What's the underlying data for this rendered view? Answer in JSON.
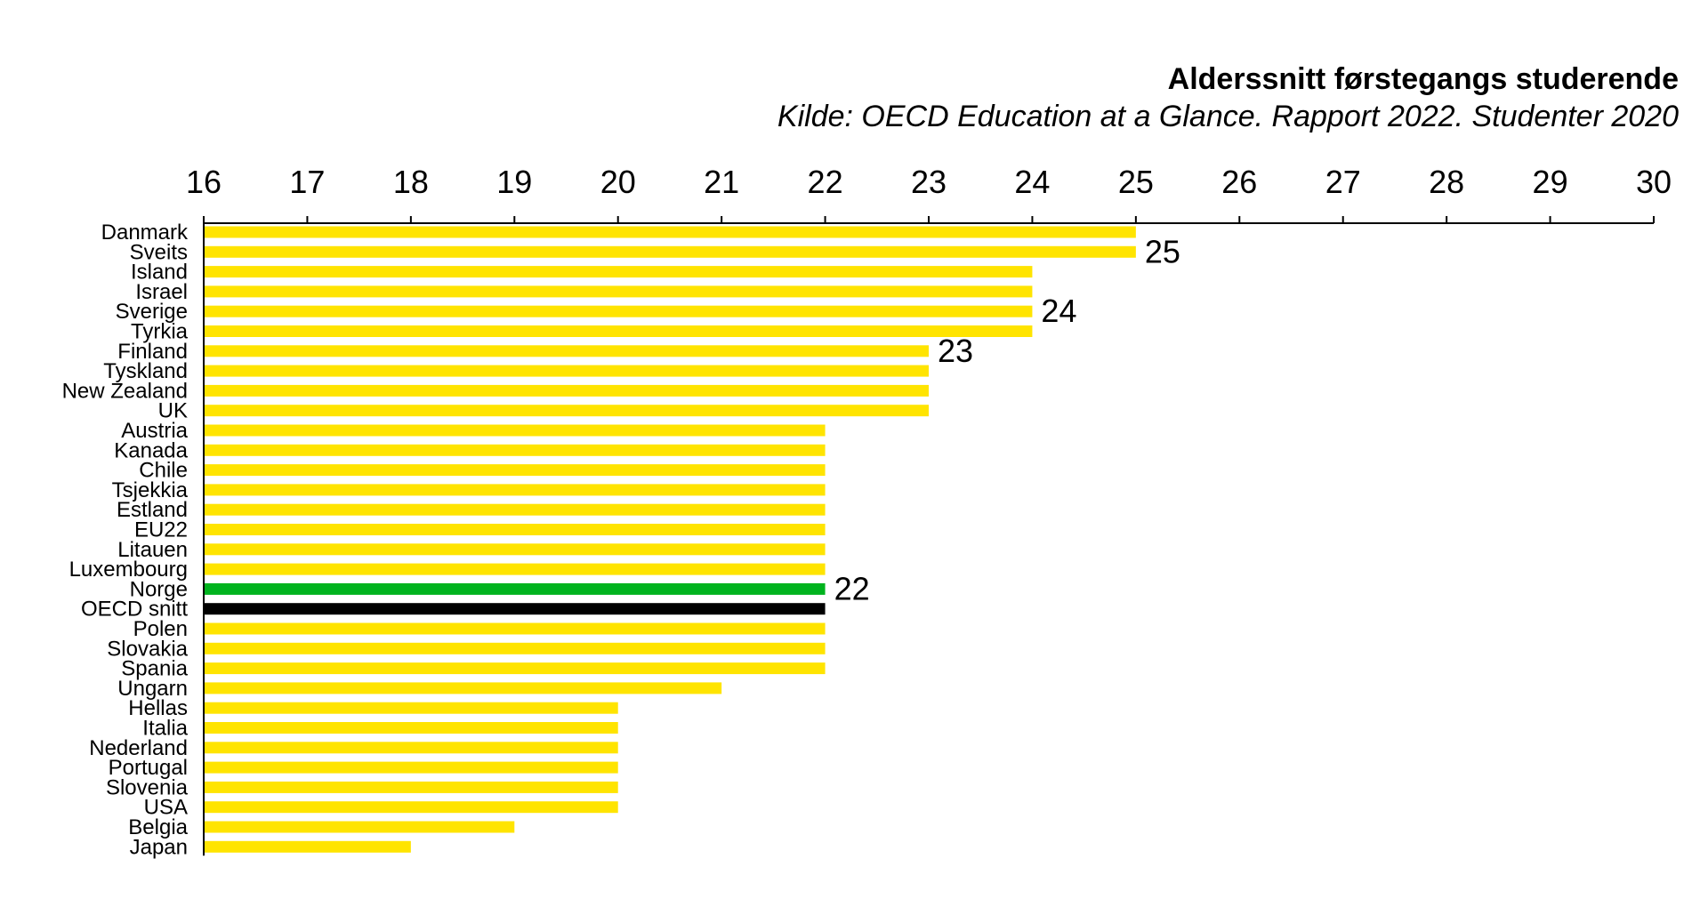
{
  "chart_data": {
    "type": "bar",
    "orientation": "horizontal",
    "title": "Alderssnitt førstegangs studerende",
    "subtitle": "Kilde: OECD Education at a Glance. Rapport 2022. Studenter 2020",
    "xlabel": "",
    "ylabel": "",
    "xlim": [
      16,
      30
    ],
    "ticks": [
      16,
      17,
      18,
      19,
      20,
      21,
      22,
      23,
      24,
      25,
      26,
      27,
      28,
      29,
      30
    ],
    "axis_position": "top",
    "grid": false,
    "categories": [
      "Danmark",
      "Sveits",
      "Island",
      "Israel",
      "Sverige",
      "Tyrkia",
      "Finland",
      "Tyskland",
      "New Zealand",
      "UK",
      "Austria",
      "Kanada",
      "Chile",
      "Tsjekkia",
      "Estland",
      "EU22",
      "Litauen",
      "Luxembourg",
      "Norge",
      "OECD snitt",
      "Polen",
      "Slovakia",
      "Spania",
      "Ungarn",
      "Hellas",
      "Italia",
      "Nederland",
      "Portugal",
      "Slovenia",
      "USA",
      "Belgia",
      "Japan"
    ],
    "values": [
      25,
      25,
      24,
      24,
      24,
      24,
      23,
      23,
      23,
      23,
      22,
      22,
      22,
      22,
      22,
      22,
      22,
      22,
      22,
      22,
      22,
      22,
      22,
      21,
      20,
      20,
      20,
      20,
      20,
      20,
      19,
      18
    ],
    "colors": {
      "default": "#ffe400",
      "Norge": "#00b31e",
      "OECD snitt": "#000000"
    },
    "annotations": [
      {
        "category": "Sveits",
        "text": "25"
      },
      {
        "category": "Sverige",
        "text": "24"
      },
      {
        "category": "Finland",
        "text": "23"
      },
      {
        "category": "Norge",
        "text": "22"
      }
    ]
  }
}
